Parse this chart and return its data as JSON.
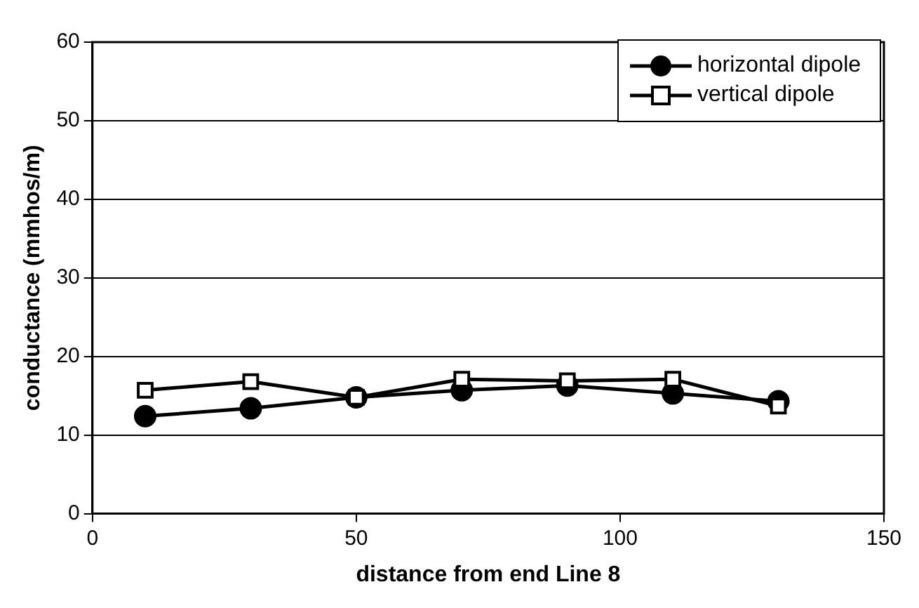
{
  "chart_data": {
    "type": "line",
    "xlabel": "distance from end Line 8",
    "ylabel": "conductance (mmhos/m)",
    "x": [
      10,
      30,
      50,
      70,
      90,
      110,
      130
    ],
    "series": [
      {
        "name": "horizontal dipole",
        "color": "#000000",
        "marker": "circle",
        "values": [
          12.4,
          13.4,
          14.8,
          15.7,
          16.3,
          15.3,
          14.3
        ]
      },
      {
        "name": "vertical dipole",
        "color": "#000000",
        "marker": "square",
        "values": [
          15.7,
          16.8,
          14.8,
          17.1,
          16.9,
          17.1,
          13.7
        ]
      }
    ],
    "xlim": [
      0,
      150
    ],
    "xticks": [
      0,
      50,
      100,
      150
    ],
    "ylim": [
      0,
      60
    ],
    "yticks": [
      0,
      10,
      20,
      30,
      40,
      50,
      60
    ],
    "grid": "y",
    "legend": "top right",
    "line_style": "solid"
  }
}
